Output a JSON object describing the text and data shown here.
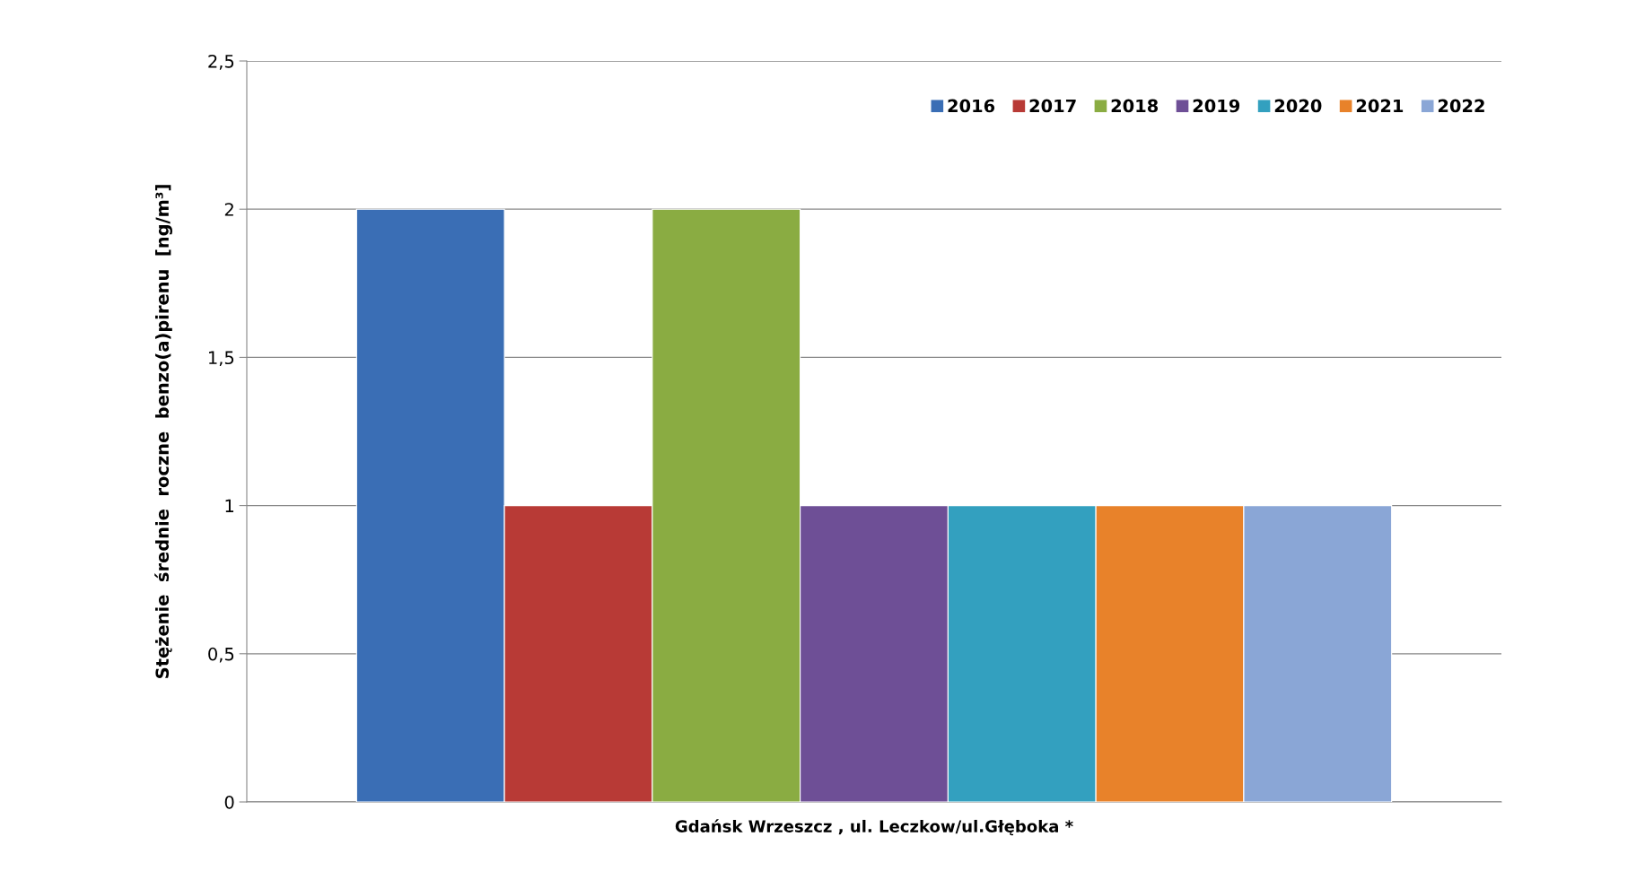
{
  "chart_data": {
    "type": "bar",
    "ylabel": "Stężenie  średnie  roczne  benzo(a)pirenu  [ng/m³]",
    "categories": [
      "Gdańsk Wrzeszcz , ul. Leczkow/ul.Głęboka *"
    ],
    "series": [
      {
        "name": "2016",
        "color": "#3a6eb5",
        "values": [
          2
        ]
      },
      {
        "name": "2017",
        "color": "#b83a36",
        "values": [
          1
        ]
      },
      {
        "name": "2018",
        "color": "#8aac42",
        "values": [
          2
        ]
      },
      {
        "name": "2019",
        "color": "#6e4f96",
        "values": [
          1
        ]
      },
      {
        "name": "2020",
        "color": "#33a0bf",
        "values": [
          1
        ]
      },
      {
        "name": "2021",
        "color": "#e8822a",
        "values": [
          1
        ]
      },
      {
        "name": "2022",
        "color": "#8aa6d6",
        "values": [
          1
        ]
      }
    ],
    "ylim": [
      0,
      2.5
    ],
    "yticks": [
      0,
      {
        "value": 0.5,
        "label": "0,5"
      },
      1,
      {
        "value": 1.5,
        "label": "1,5"
      },
      2,
      {
        "value": 2.5,
        "label": "2,5"
      }
    ],
    "grid": "y",
    "legend": "top right"
  }
}
